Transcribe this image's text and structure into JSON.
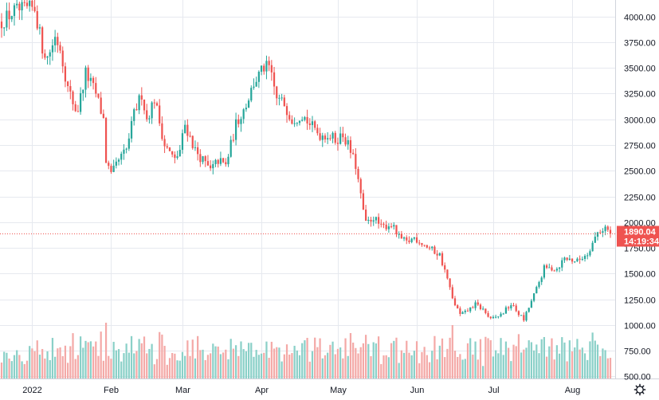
{
  "chart_data": {
    "type": "candlestick",
    "title": "",
    "xlabel": "",
    "ylabel": "",
    "ylim": [
      480,
      4160
    ],
    "y_ticks": [
      500,
      750,
      1000,
      1250,
      1500,
      1750,
      2000,
      2250,
      2500,
      2750,
      3000,
      3250,
      3500,
      3750,
      4000
    ],
    "y_tick_labels": [
      "500.00",
      "750.00",
      "1000.00",
      "1250.00",
      "1500.00",
      "1750.00",
      "2000.00",
      "2250.00",
      "2500.00",
      "2750.00",
      "3000.00",
      "3250.00",
      "3500.00",
      "3750.00",
      "4000.00"
    ],
    "x_ticks": [
      {
        "label": "2022",
        "date": "2022-01-01"
      },
      {
        "label": "Feb",
        "date": "2022-02-01"
      },
      {
        "label": "Mar",
        "date": "2022-03-01"
      },
      {
        "label": "Apr",
        "date": "2022-04-01"
      },
      {
        "label": "May",
        "date": "2022-05-01"
      },
      {
        "label": "Jun",
        "date": "2022-06-01"
      },
      {
        "label": "Jul",
        "date": "2022-07-01"
      },
      {
        "label": "Aug",
        "date": "2022-08-01"
      }
    ],
    "date_range": [
      "2021-12-20",
      "2022-08-16"
    ],
    "anchors": [
      [
        "2021-12-20",
        3950
      ],
      [
        "2021-12-25",
        4050
      ],
      [
        "2022-01-02",
        4080
      ],
      [
        "2022-01-05",
        3700
      ],
      [
        "2022-01-07",
        3600
      ],
      [
        "2022-01-10",
        3800
      ],
      [
        "2022-01-12",
        3700
      ],
      [
        "2022-01-15",
        3300
      ],
      [
        "2022-01-18",
        3100
      ],
      [
        "2022-01-19",
        3100
      ],
      [
        "2022-01-22",
        3450
      ],
      [
        "2022-01-24",
        3350
      ],
      [
        "2022-01-26",
        3250
      ],
      [
        "2022-01-29",
        3000
      ],
      [
        "2022-01-30",
        2600
      ],
      [
        "2022-02-01",
        2450
      ],
      [
        "2022-02-04",
        2600
      ],
      [
        "2022-02-07",
        2700
      ],
      [
        "2022-02-10",
        3050
      ],
      [
        "2022-02-13",
        3250
      ],
      [
        "2022-02-15",
        3000
      ],
      [
        "2022-02-18",
        3200
      ],
      [
        "2022-02-22",
        2750
      ],
      [
        "2022-02-26",
        2600
      ],
      [
        "2022-02-28",
        2700
      ],
      [
        "2022-03-02",
        2950
      ],
      [
        "2022-03-06",
        2700
      ],
      [
        "2022-03-09",
        2600
      ],
      [
        "2022-03-12",
        2500
      ],
      [
        "2022-03-15",
        2600
      ],
      [
        "2022-03-18",
        2550
      ],
      [
        "2022-03-22",
        2950
      ],
      [
        "2022-03-26",
        3150
      ],
      [
        "2022-03-29",
        3350
      ],
      [
        "2022-04-02",
        3500
      ],
      [
        "2022-04-04",
        3500
      ],
      [
        "2022-04-07",
        3200
      ],
      [
        "2022-04-10",
        3150
      ],
      [
        "2022-04-13",
        3000
      ],
      [
        "2022-04-17",
        3050
      ],
      [
        "2022-04-20",
        2950
      ],
      [
        "2022-04-24",
        2850
      ],
      [
        "2022-04-27",
        2850
      ],
      [
        "2022-04-30",
        2800
      ],
      [
        "2022-05-03",
        2850
      ],
      [
        "2022-05-05",
        2750
      ],
      [
        "2022-05-08",
        2550
      ],
      [
        "2022-05-10",
        2250
      ],
      [
        "2022-05-12",
        1980
      ],
      [
        "2022-05-15",
        2050
      ],
      [
        "2022-05-18",
        1950
      ],
      [
        "2022-05-22",
        1980
      ],
      [
        "2022-05-25",
        1850
      ],
      [
        "2022-05-28",
        1800
      ],
      [
        "2022-05-31",
        1850
      ],
      [
        "2022-06-04",
        1780
      ],
      [
        "2022-06-10",
        1680
      ],
      [
        "2022-06-13",
        1450
      ],
      [
        "2022-06-15",
        1250
      ],
      [
        "2022-06-18",
        1100
      ],
      [
        "2022-06-20",
        1120
      ],
      [
        "2022-06-24",
        1200
      ],
      [
        "2022-06-27",
        1150
      ],
      [
        "2022-06-30",
        1050
      ],
      [
        "2022-07-04",
        1100
      ],
      [
        "2022-07-08",
        1200
      ],
      [
        "2022-07-13",
        1050
      ],
      [
        "2022-07-18",
        1350
      ],
      [
        "2022-07-21",
        1550
      ],
      [
        "2022-07-26",
        1550
      ],
      [
        "2022-07-29",
        1650
      ],
      [
        "2022-08-03",
        1620
      ],
      [
        "2022-08-07",
        1700
      ],
      [
        "2022-08-11",
        1900
      ],
      [
        "2022-08-14",
        1950
      ],
      [
        "2022-08-16",
        1890
      ]
    ],
    "volume_ylim": [
      0,
      1200
    ],
    "last_price_label": "1890.04",
    "countdown_label": "14:19:34",
    "last_price": 1890.04,
    "colors": {
      "up": "#26a69a",
      "down": "#ef5350",
      "up_volume": "#8ad0c8",
      "down_volume": "#f4a9a7",
      "grid": "#e6e9ef",
      "axis_text": "#131722",
      "price_line": "#ef5350",
      "price_tag": "#ef5350"
    },
    "settings_icon": "gear-icon"
  }
}
